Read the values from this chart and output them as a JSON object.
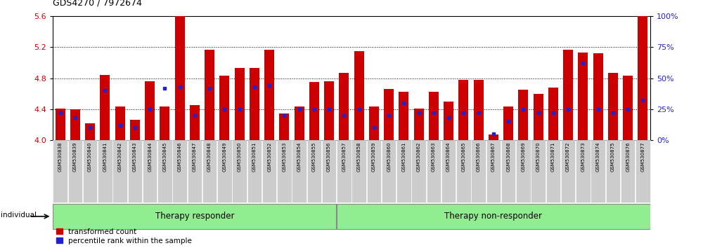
{
  "title": "GDS4270 / 7972674",
  "ylim_left": [
    4.0,
    5.6
  ],
  "ylim_right": [
    0,
    100
  ],
  "yticks_left": [
    4.0,
    4.4,
    4.8,
    5.2,
    5.6
  ],
  "yticks_right": [
    0,
    25,
    50,
    75,
    100
  ],
  "samples": [
    "GSM530838",
    "GSM530839",
    "GSM530840",
    "GSM530841",
    "GSM530842",
    "GSM530843",
    "GSM530844",
    "GSM530845",
    "GSM530846",
    "GSM530847",
    "GSM530848",
    "GSM530849",
    "GSM530850",
    "GSM530851",
    "GSM530852",
    "GSM530853",
    "GSM530854",
    "GSM530855",
    "GSM530856",
    "GSM530857",
    "GSM530858",
    "GSM530859",
    "GSM530860",
    "GSM530861",
    "GSM530862",
    "GSM530863",
    "GSM530864",
    "GSM530865",
    "GSM530866",
    "GSM530867",
    "GSM530868",
    "GSM530869",
    "GSM530870",
    "GSM530871",
    "GSM530872",
    "GSM530873",
    "GSM530874",
    "GSM530875",
    "GSM530876",
    "GSM530877"
  ],
  "transformed_count": [
    4.41,
    4.4,
    4.22,
    4.84,
    4.43,
    4.26,
    4.76,
    4.43,
    5.68,
    4.45,
    5.17,
    4.83,
    4.93,
    4.93,
    5.17,
    4.34,
    4.43,
    4.75,
    4.76,
    4.87,
    5.15,
    4.43,
    4.66,
    4.62,
    4.41,
    4.62,
    4.5,
    4.78,
    4.78,
    4.07,
    4.43,
    4.65,
    4.6,
    4.68,
    5.17,
    5.13,
    5.12,
    4.87,
    4.83,
    5.6
  ],
  "percentile_rank": [
    22,
    18,
    10,
    40,
    12,
    10,
    25,
    42,
    43,
    20,
    42,
    25,
    25,
    43,
    44,
    20,
    25,
    25,
    25,
    20,
    25,
    10,
    20,
    30,
    22,
    22,
    18,
    22,
    22,
    5,
    15,
    25,
    22,
    22,
    25,
    62,
    25,
    22,
    25,
    32
  ],
  "group_responder_count": 19,
  "group_nonresponder_count": 21,
  "bar_color_red": "#cc0000",
  "bar_color_blue": "#2222cc",
  "group_bg_color": "#90ee90",
  "tick_color_left": "#cc0000",
  "tick_color_right": "#2222cc",
  "base_value": 4.0,
  "bar_width": 0.65,
  "group_responder_label": "Therapy responder",
  "group_nonresponder_label": "Therapy non-responder",
  "legend_label_red": "transformed count",
  "legend_label_blue": "percentile rank within the sample"
}
